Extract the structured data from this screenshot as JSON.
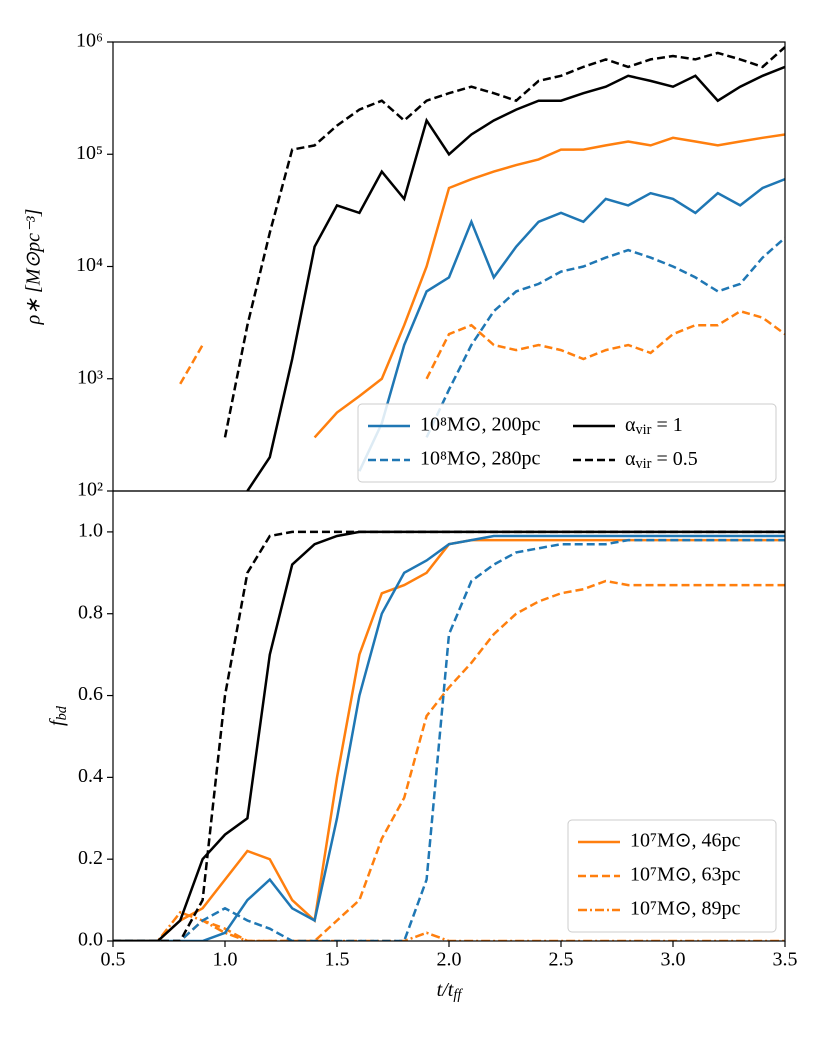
{
  "chart_data": [
    {
      "type": "line",
      "ylabel": "ρ∗ [M⊙pc⁻³]",
      "yscale": "log",
      "ylim": [
        100,
        1000000
      ],
      "xlim": [
        0.5,
        3.5
      ],
      "yticks": [
        {
          "value": 100,
          "label": "10²"
        },
        {
          "value": 1000,
          "label": "10³"
        },
        {
          "value": 10000,
          "label": "10⁴"
        },
        {
          "value": 100000,
          "label": "10⁵"
        },
        {
          "value": 1000000,
          "label": "10⁶"
        }
      ],
      "legend": "lower right",
      "legend_columns": 2,
      "x": [
        0.8,
        0.9,
        1.0,
        1.1,
        1.2,
        1.3,
        1.4,
        1.5,
        1.6,
        1.7,
        1.8,
        1.9,
        2.0,
        2.1,
        2.2,
        2.3,
        2.4,
        2.5,
        2.6,
        2.7,
        2.8,
        2.9,
        3.0,
        3.1,
        3.2,
        3.3,
        3.4,
        3.5
      ],
      "series": [
        {
          "name": "10⁸M⊙, 200pc",
          "color": "#1f77b4",
          "dash": "solid",
          "values": [
            null,
            null,
            null,
            null,
            null,
            null,
            null,
            null,
            150,
            400,
            2000,
            6000,
            8000,
            25000,
            8000,
            15000,
            25000,
            30000,
            25000,
            40000,
            35000,
            45000,
            40000,
            30000,
            45000,
            35000,
            50000,
            60000
          ]
        },
        {
          "name": "10⁸M⊙, 280pc",
          "color": "#1f77b4",
          "dash": "dashed",
          "values": [
            null,
            null,
            null,
            null,
            null,
            null,
            null,
            null,
            null,
            null,
            null,
            300,
            800,
            2000,
            4000,
            6000,
            7000,
            9000,
            10000,
            12000,
            14000,
            12000,
            10000,
            8000,
            6000,
            7000,
            12000,
            18000
          ]
        },
        {
          "name": "α_vir = 1",
          "color": "#000000",
          "dash": "solid",
          "values": [
            null,
            null,
            null,
            100,
            200,
            1500,
            15000,
            35000,
            30000,
            70000,
            40000,
            200000,
            100000,
            150000,
            200000,
            250000,
            300000,
            300000,
            350000,
            400000,
            500000,
            450000,
            400000,
            500000,
            300000,
            400000,
            500000,
            600000
          ]
        },
        {
          "name": "α_vir = 0.5",
          "color": "#000000",
          "dash": "dashed",
          "values": [
            null,
            null,
            300,
            3000,
            20000,
            110000,
            120000,
            180000,
            250000,
            300000,
            200000,
            300000,
            350000,
            400000,
            350000,
            300000,
            450000,
            500000,
            600000,
            700000,
            600000,
            700000,
            750000,
            700000,
            800000,
            700000,
            600000,
            900000
          ]
        },
        {
          "name": "10⁷M⊙, 46pc",
          "color": "#ff7f0e",
          "dash": "solid",
          "in_legend": false,
          "values": [
            null,
            null,
            null,
            null,
            null,
            null,
            300,
            500,
            700,
            1000,
            3000,
            10000,
            50000,
            60000,
            70000,
            80000,
            90000,
            110000,
            110000,
            120000,
            130000,
            120000,
            140000,
            130000,
            120000,
            130000,
            140000,
            150000
          ]
        },
        {
          "name": "10⁷M⊙, 63pc",
          "color": "#ff7f0e",
          "dash": "dashed",
          "in_legend": false,
          "values": [
            900,
            2000,
            null,
            null,
            null,
            null,
            null,
            null,
            null,
            null,
            null,
            1000,
            2500,
            3000,
            2000,
            1800,
            2000,
            1800,
            1500,
            1800,
            2000,
            1700,
            2500,
            3000,
            3000,
            4000,
            3500,
            2500
          ]
        }
      ]
    },
    {
      "type": "line",
      "ylabel": "f_bd",
      "xlabel": "t/t_ff",
      "ylim": [
        0,
        1.1
      ],
      "xlim": [
        0.5,
        3.5
      ],
      "yticks": [
        {
          "value": 0,
          "label": "0.0"
        },
        0.2,
        0.4,
        0.6,
        0.8,
        {
          "value": 1,
          "label": "1.0"
        }
      ],
      "xticks": [
        0.5,
        {
          "value": 1,
          "label": "1.0"
        },
        1.5,
        {
          "value": 2,
          "label": "2.0"
        },
        2.5,
        {
          "value": 3,
          "label": "3.0"
        },
        3.5
      ],
      "legend": "lower right",
      "legend_columns": 1,
      "x": [
        0.5,
        0.6,
        0.7,
        0.8,
        0.9,
        1.0,
        1.1,
        1.2,
        1.3,
        1.4,
        1.5,
        1.6,
        1.7,
        1.8,
        1.9,
        2.0,
        2.1,
        2.2,
        2.3,
        2.4,
        2.5,
        2.6,
        2.7,
        2.8,
        2.9,
        3.0,
        3.1,
        3.2,
        3.3,
        3.4,
        3.5
      ],
      "series": [
        {
          "name": "10⁷M⊙, 46pc",
          "color": "#ff7f0e",
          "dash": "solid",
          "values": [
            0,
            0,
            0,
            0.05,
            0.08,
            0.15,
            0.22,
            0.2,
            0.1,
            0.05,
            0.4,
            0.7,
            0.85,
            0.87,
            0.9,
            0.97,
            0.98,
            0.98,
            0.98,
            0.98,
            0.98,
            0.98,
            0.98,
            0.98,
            0.98,
            0.98,
            0.98,
            0.98,
            0.98,
            0.98,
            0.98
          ]
        },
        {
          "name": "10⁷M⊙, 63pc",
          "color": "#ff7f0e",
          "dash": "dashed",
          "values": [
            0,
            0,
            0,
            0,
            0.05,
            0.03,
            0,
            0,
            0,
            0,
            0.05,
            0.1,
            0.25,
            0.35,
            0.55,
            0.62,
            0.68,
            0.75,
            0.8,
            0.83,
            0.85,
            0.86,
            0.88,
            0.87,
            0.87,
            0.87,
            0.87,
            0.87,
            0.87,
            0.87,
            0.87
          ]
        },
        {
          "name": "10⁷M⊙, 89pc",
          "color": "#ff7f0e",
          "dash": "dashdot",
          "values": [
            0,
            0,
            0,
            0.07,
            0.05,
            0.02,
            0,
            0,
            0,
            0,
            0,
            0,
            0,
            0,
            0.02,
            0,
            0,
            0,
            0,
            0,
            0,
            0,
            0,
            0,
            0,
            0,
            0,
            0,
            0,
            0,
            0
          ]
        },
        {
          "name": "10⁸M⊙, 200pc",
          "color": "#1f77b4",
          "dash": "solid",
          "in_legend": false,
          "values": [
            0,
            0,
            0,
            0,
            0,
            0.02,
            0.1,
            0.15,
            0.08,
            0.05,
            0.3,
            0.6,
            0.8,
            0.9,
            0.93,
            0.97,
            0.98,
            0.99,
            0.99,
            0.99,
            0.99,
            0.99,
            0.99,
            0.99,
            0.99,
            0.99,
            0.99,
            0.99,
            0.99,
            0.99,
            0.99
          ]
        },
        {
          "name": "10⁸M⊙, 280pc",
          "color": "#1f77b4",
          "dash": "dashed",
          "in_legend": false,
          "values": [
            0,
            0,
            0,
            0,
            0.05,
            0.08,
            0.05,
            0.03,
            0,
            0,
            0,
            0,
            0,
            0,
            0.15,
            0.75,
            0.88,
            0.92,
            0.95,
            0.96,
            0.97,
            0.97,
            0.97,
            0.98,
            0.98,
            0.98,
            0.98,
            0.98,
            0.98,
            0.98,
            0.98
          ]
        },
        {
          "name": "α_vir = 1",
          "color": "#000000",
          "dash": "solid",
          "in_legend": false,
          "values": [
            0,
            0,
            0,
            0.05,
            0.2,
            0.26,
            0.3,
            0.7,
            0.92,
            0.97,
            0.99,
            1,
            1,
            1,
            1,
            1,
            1,
            1,
            1,
            1,
            1,
            1,
            1,
            1,
            1,
            1,
            1,
            1,
            1,
            1,
            1
          ]
        },
        {
          "name": "α_vir = 0.5",
          "color": "#000000",
          "dash": "dashed",
          "in_legend": false,
          "values": [
            0,
            0,
            0,
            0,
            0.1,
            0.6,
            0.9,
            0.99,
            1,
            1,
            1,
            1,
            1,
            1,
            1,
            1,
            1,
            1,
            1,
            1,
            1,
            1,
            1,
            1,
            1,
            1,
            1,
            1,
            1,
            1,
            1
          ]
        }
      ]
    }
  ]
}
